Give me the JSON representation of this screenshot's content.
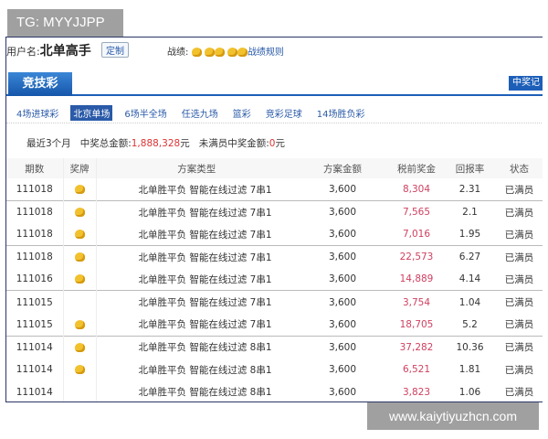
{
  "watermarks": {
    "top": "TG: MYYJJPP",
    "bottom": "www.kaiytiyuzhcn.com"
  },
  "user": {
    "label": "用户名:",
    "name": "北单高手",
    "custom_button": "定制",
    "record_label": "战绩:",
    "record_rule": "战绩规则",
    "medal_color": "#f2c12e"
  },
  "tabs": {
    "active": "竞技彩",
    "right_button": "中奖记"
  },
  "subtabs": [
    "4场进球彩",
    "北京单场",
    "6场半全场",
    "任选九场",
    "篮彩",
    "竞彩足球",
    "14场胜负彩"
  ],
  "active_subtab": 1,
  "summary": {
    "period": "最近3个月",
    "total_label": "中奖总金额:",
    "total_value": "1,888,328",
    "unit": "元",
    "unfilled_label": "未满员中奖金额:",
    "unfilled_value": "0",
    "unit2": "元"
  },
  "table": {
    "headers": [
      "期数",
      "奖牌",
      "方案类型",
      "方案金额",
      "税前奖金",
      "回报率",
      "状态"
    ],
    "rows": [
      {
        "issue": "111018",
        "medal": true,
        "type": "北单胜平负 智能在线过滤 7串1",
        "amount": "3,600",
        "bonus": "8,304",
        "rate": "2.31",
        "status": "已满员"
      },
      {
        "issue": "111018",
        "medal": true,
        "type": "北单胜平负 智能在线过滤 7串1",
        "amount": "3,600",
        "bonus": "7,565",
        "rate": "2.1",
        "status": "已满员"
      },
      {
        "issue": "111018",
        "medal": true,
        "type": "北单胜平负 智能在线过滤 7串1",
        "amount": "3,600",
        "bonus": "7,016",
        "rate": "1.95",
        "status": "已满员"
      },
      {
        "issue": "111018",
        "medal": true,
        "type": "北单胜平负 智能在线过滤 7串1",
        "amount": "3,600",
        "bonus": "22,573",
        "rate": "6.27",
        "status": "已满员"
      },
      {
        "issue": "111016",
        "medal": true,
        "type": "北单胜平负 智能在线过滤 7串1",
        "amount": "3,600",
        "bonus": "14,889",
        "rate": "4.14",
        "status": "已满员"
      },
      {
        "issue": "111015",
        "medal": false,
        "type": "北单胜平负 智能在线过滤 7串1",
        "amount": "3,600",
        "bonus": "3,754",
        "rate": "1.04",
        "status": "已满员"
      },
      {
        "issue": "111015",
        "medal": true,
        "type": "北单胜平负 智能在线过滤 7串1",
        "amount": "3,600",
        "bonus": "18,705",
        "rate": "5.2",
        "status": "已满员"
      },
      {
        "issue": "111014",
        "medal": true,
        "type": "北单胜平负 智能在线过滤 8串1",
        "amount": "3,600",
        "bonus": "37,282",
        "rate": "10.36",
        "status": "已满员"
      },
      {
        "issue": "111014",
        "medal": true,
        "type": "北单胜平负 智能在线过滤 8串1",
        "amount": "3,600",
        "bonus": "6,521",
        "rate": "1.81",
        "status": "已满员"
      },
      {
        "issue": "111014",
        "medal": false,
        "type": "北单胜平负 智能在线过滤 8串1",
        "amount": "3,600",
        "bonus": "3,823",
        "rate": "1.06",
        "status": "已满员"
      }
    ]
  }
}
